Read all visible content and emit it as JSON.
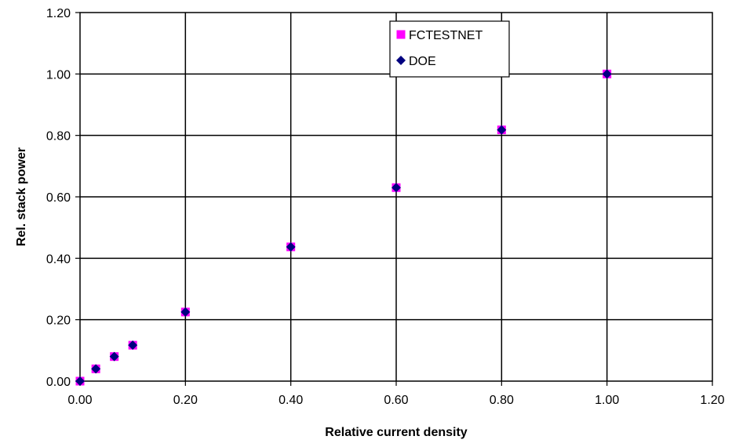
{
  "chart_data": {
    "type": "scatter",
    "title": "",
    "xlabel": "Relative current density",
    "ylabel": "Rel. stack power",
    "xlim": [
      0,
      1.2
    ],
    "ylim": [
      0,
      1.2
    ],
    "x_ticks": [
      "0.00",
      "0.20",
      "0.40",
      "0.60",
      "0.80",
      "1.00",
      "1.20"
    ],
    "y_ticks": [
      "0.00",
      "0.20",
      "0.40",
      "0.60",
      "0.80",
      "1.00",
      "1.20"
    ],
    "grid": true,
    "legend_position": "top-right",
    "series": [
      {
        "name": "FCTESTNET",
        "marker": "square",
        "color": "#ff00ff",
        "x": [
          0,
          0.03,
          0.065,
          0.1,
          0.2,
          0.4,
          0.6,
          0.8,
          1.0
        ],
        "y": [
          0,
          0.04,
          0.08,
          0.117,
          0.225,
          0.437,
          0.63,
          0.818,
          1.0
        ]
      },
      {
        "name": "DOE",
        "marker": "diamond",
        "color": "#000080",
        "x": [
          0,
          0.03,
          0.065,
          0.1,
          0.2,
          0.4,
          0.6,
          0.8,
          1.0
        ],
        "y": [
          0,
          0.04,
          0.08,
          0.117,
          0.225,
          0.437,
          0.63,
          0.818,
          1.0
        ]
      }
    ]
  }
}
